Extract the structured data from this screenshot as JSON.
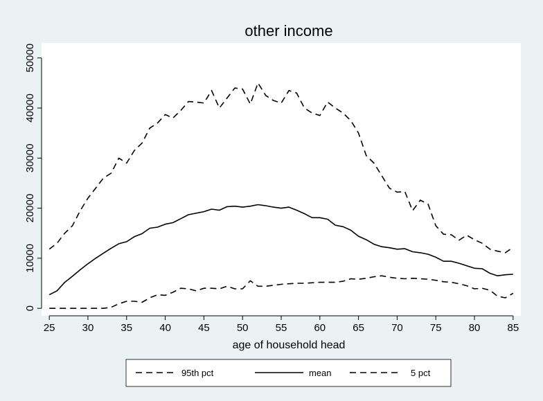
{
  "chart_data": {
    "type": "line",
    "title": "other income",
    "xlabel": "age of household head",
    "ylabel": "",
    "xlim": [
      24,
      86
    ],
    "ylim": [
      -1500,
      53000
    ],
    "xticks": [
      25,
      30,
      35,
      40,
      45,
      50,
      55,
      60,
      65,
      70,
      75,
      80,
      85
    ],
    "yticks": [
      0,
      10000,
      20000,
      30000,
      40000,
      50000
    ],
    "grid": false,
    "legend_position": "bottom",
    "x": [
      25,
      26,
      27,
      28,
      29,
      30,
      31,
      32,
      33,
      34,
      35,
      36,
      37,
      38,
      39,
      40,
      41,
      42,
      43,
      44,
      45,
      46,
      47,
      48,
      49,
      50,
      51,
      52,
      53,
      54,
      55,
      56,
      57,
      58,
      59,
      60,
      61,
      62,
      63,
      64,
      65,
      66,
      67,
      68,
      69,
      70,
      71,
      72,
      73,
      74,
      75,
      76,
      77,
      78,
      79,
      80,
      81,
      82,
      83,
      84,
      85
    ],
    "series": [
      {
        "name": "95th pct",
        "style": "dashed",
        "values": [
          11800,
          13000,
          15000,
          16500,
          19500,
          22000,
          24000,
          26000,
          27000,
          30000,
          29000,
          31500,
          33000,
          36000,
          37000,
          38700,
          38000,
          39500,
          41300,
          41200,
          41000,
          43500,
          40000,
          42000,
          44000,
          43800,
          40800,
          45000,
          42500,
          41500,
          41000,
          43500,
          43000,
          40000,
          39000,
          38500,
          41200,
          40000,
          39000,
          37500,
          35000,
          30500,
          29000,
          26500,
          24000,
          23200,
          23300,
          19500,
          21600,
          20800,
          16500,
          14800,
          14700,
          13600,
          14600,
          13700,
          13000,
          11800,
          11400,
          11100,
          12200
        ]
      },
      {
        "name": "mean",
        "style": "solid",
        "values": [
          2700,
          3500,
          5200,
          6400,
          7700,
          8900,
          10000,
          11000,
          12000,
          12900,
          13300,
          14300,
          14900,
          16000,
          16200,
          16800,
          17100,
          17900,
          18700,
          19000,
          19300,
          19800,
          19600,
          20300,
          20400,
          20200,
          20400,
          20700,
          20500,
          20200,
          20000,
          20200,
          19600,
          18900,
          18100,
          18100,
          17800,
          16600,
          16300,
          15600,
          14400,
          13700,
          12800,
          12300,
          12100,
          11800,
          11900,
          11300,
          11100,
          10800,
          10200,
          9400,
          9400,
          9000,
          8500,
          8000,
          7900,
          7000,
          6500,
          6700,
          6800
        ]
      },
      {
        "name": "5 pct",
        "style": "dashed",
        "values": [
          0,
          0,
          0,
          0,
          0,
          0,
          0,
          0,
          200,
          900,
          1400,
          1400,
          1200,
          2100,
          2700,
          2600,
          3200,
          4000,
          3900,
          3500,
          4000,
          4000,
          3900,
          4400,
          3900,
          3900,
          5500,
          4400,
          4400,
          4600,
          4800,
          4900,
          5000,
          5000,
          5100,
          5200,
          5200,
          5200,
          5400,
          5900,
          5800,
          6000,
          6300,
          6500,
          6200,
          6000,
          5900,
          6000,
          5900,
          5800,
          5600,
          5300,
          5200,
          4900,
          4500,
          3900,
          4000,
          3600,
          2400,
          2100,
          3000
        ]
      }
    ]
  }
}
